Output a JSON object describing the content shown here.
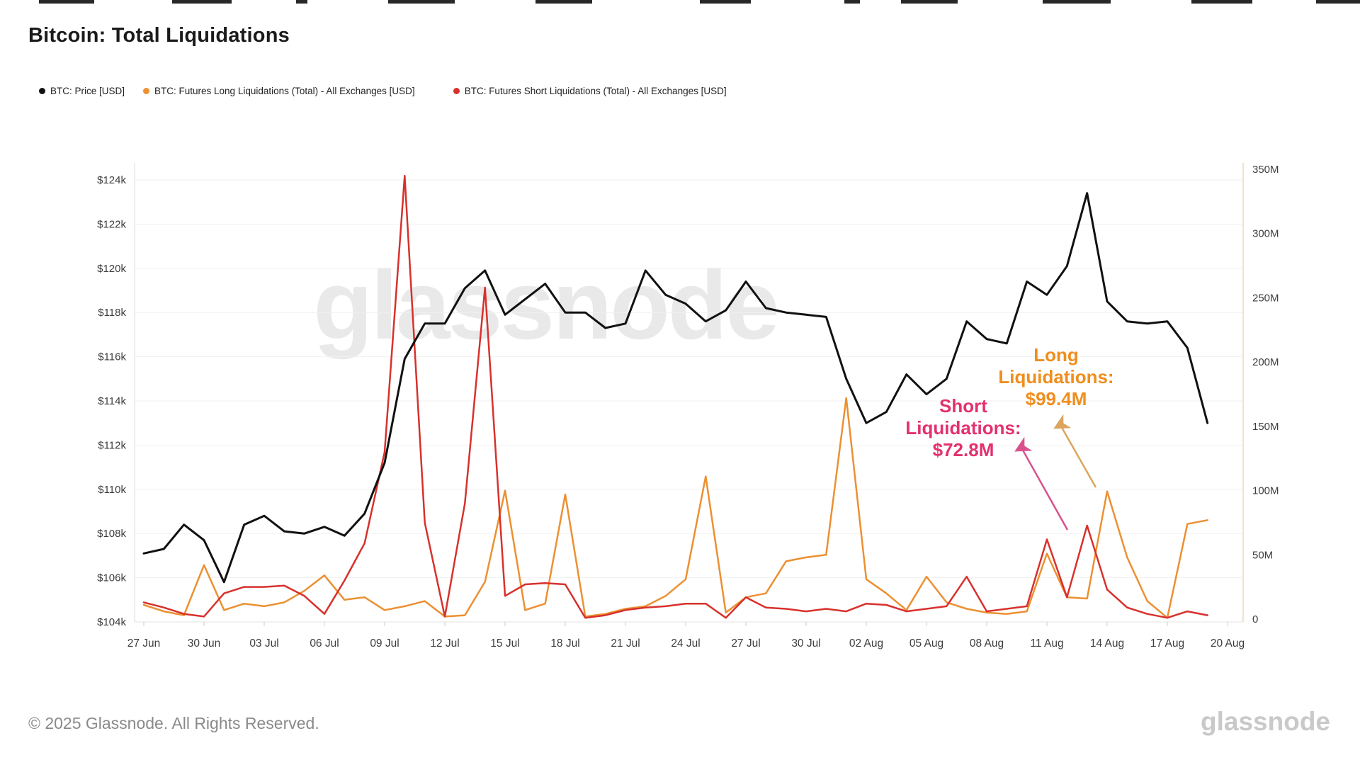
{
  "page": {
    "title": "Bitcoin: Total Liquidations"
  },
  "legend": [
    {
      "label": "BTC: Price [USD]",
      "color": "#111111"
    },
    {
      "label": "BTC: Futures Long Liquidations (Total) - All Exchanges [USD]",
      "color": "#EC9031"
    },
    {
      "label": "BTC: Futures Short Liquidations (Total) - All Exchanges [USD]",
      "color": "#D7312C"
    }
  ],
  "watermark": "glassnode",
  "annotations": {
    "long": {
      "line1": "Long",
      "line2": "Liquidations:",
      "line3": "$99.4M",
      "color": "#EF8E1E",
      "arrow_color": "#DBA55E"
    },
    "short": {
      "line1": "Short",
      "line2": "Liquidations:",
      "line3": "$72.8M",
      "color": "#E3316F",
      "arrow_color": "#D9518C"
    }
  },
  "footer": {
    "copyright": "© 2025 Glassnode. All Rights Reserved.",
    "brand": "glassnode"
  },
  "chart_data": {
    "type": "line",
    "title": "Bitcoin: Total Liquidations",
    "x": [
      "27 Jun",
      "28 Jun",
      "29 Jun",
      "30 Jun",
      "01 Jul",
      "02 Jul",
      "03 Jul",
      "04 Jul",
      "05 Jul",
      "06 Jul",
      "07 Jul",
      "08 Jul",
      "09 Jul",
      "10 Jul",
      "11 Jul",
      "12 Jul",
      "13 Jul",
      "14 Jul",
      "15 Jul",
      "16 Jul",
      "17 Jul",
      "18 Jul",
      "19 Jul",
      "20 Jul",
      "21 Jul",
      "22 Jul",
      "23 Jul",
      "24 Jul",
      "25 Jul",
      "26 Jul",
      "27 Jul",
      "28 Jul",
      "29 Jul",
      "30 Jul",
      "31 Jul",
      "01 Aug",
      "02 Aug",
      "03 Aug",
      "04 Aug",
      "05 Aug",
      "06 Aug",
      "07 Aug",
      "08 Aug",
      "09 Aug",
      "10 Aug",
      "11 Aug",
      "12 Aug",
      "13 Aug",
      "14 Aug",
      "15 Aug",
      "16 Aug",
      "17 Aug",
      "18 Aug",
      "19 Aug"
    ],
    "x_tick_labels": [
      "27 Jun",
      "30 Jun",
      "03 Jul",
      "06 Jul",
      "09 Jul",
      "12 Jul",
      "15 Jul",
      "18 Jul",
      "21 Jul",
      "24 Jul",
      "27 Jul",
      "30 Jul",
      "02 Aug",
      "05 Aug",
      "08 Aug",
      "11 Aug",
      "14 Aug",
      "17 Aug",
      "20 Aug"
    ],
    "series": [
      {
        "name": "BTC: Price [USD]",
        "axis": "left",
        "unit": "USD (thousands)",
        "color": "#111111",
        "width": 3,
        "values": [
          107.1,
          107.3,
          108.4,
          107.7,
          105.8,
          108.4,
          108.8,
          108.1,
          108.0,
          108.3,
          107.9,
          108.9,
          111.2,
          115.9,
          117.5,
          117.5,
          119.1,
          119.9,
          117.9,
          118.6,
          119.3,
          118.0,
          118.0,
          117.3,
          117.5,
          119.9,
          118.8,
          118.4,
          117.6,
          118.1,
          119.4,
          118.2,
          118.0,
          117.9,
          117.8,
          115.0,
          113.0,
          113.5,
          115.2,
          114.3,
          115.0,
          117.6,
          116.8,
          116.6,
          119.4,
          118.8,
          120.1,
          123.4,
          118.5,
          117.6,
          117.5,
          117.6,
          116.4,
          113.0
        ]
      },
      {
        "name": "BTC: Futures Long Liquidations (Total) - All Exchanges [USD]",
        "axis": "right",
        "unit": "USD (millions)",
        "color": "#EC9031",
        "width": 2.5,
        "values": [
          11,
          6,
          3,
          42,
          7,
          12,
          10,
          13,
          22,
          34,
          15,
          17,
          7,
          10,
          14,
          2,
          3,
          29,
          100,
          7,
          12,
          97,
          2,
          4,
          8,
          10,
          18,
          31,
          111,
          5,
          17,
          20,
          45,
          48,
          50,
          172,
          31,
          20,
          7,
          33,
          13,
          8,
          5,
          4,
          6,
          51,
          17,
          16,
          99.4,
          48,
          14,
          1,
          74,
          77
        ]
      },
      {
        "name": "BTC: Futures Short Liquidations (Total) - All Exchanges [USD]",
        "axis": "right",
        "unit": "USD (millions)",
        "color": "#D7312C",
        "width": 2.5,
        "values": [
          13,
          9,
          4,
          2,
          20,
          25,
          25,
          26,
          18,
          4,
          30,
          59,
          130,
          345,
          75,
          2,
          90,
          258,
          18,
          27,
          28,
          27,
          1,
          3,
          7,
          9,
          10,
          12,
          12,
          1,
          17,
          9,
          8,
          6,
          8,
          6,
          12,
          11,
          6,
          8,
          10,
          33,
          6,
          8,
          10,
          62,
          17,
          72.8,
          23,
          9,
          4,
          1,
          6,
          3
        ]
      }
    ],
    "y_left": {
      "range": [
        104,
        124
      ],
      "tick_values": [
        104,
        106,
        108,
        110,
        112,
        114,
        116,
        118,
        120,
        122,
        124
      ],
      "tick_labels": [
        "$104k",
        "$106k",
        "$108k",
        "$110k",
        "$112k",
        "$114k",
        "$116k",
        "$118k",
        "$120k",
        "$122k",
        "$124k"
      ]
    },
    "y_right": {
      "range": [
        0,
        350
      ],
      "tick_values": [
        0,
        50,
        100,
        150,
        200,
        250,
        300,
        350
      ],
      "tick_labels": [
        "0",
        "50M",
        "100M",
        "150M",
        "200M",
        "250M",
        "300M",
        "350M"
      ]
    },
    "grid": "horizontal",
    "legend_position": "top-left",
    "annotated_points": [
      {
        "date": "14 Aug",
        "series": "long",
        "value_label": "$99.4M"
      },
      {
        "date": "13 Aug",
        "series": "short",
        "value_label": "$72.8M"
      }
    ]
  }
}
